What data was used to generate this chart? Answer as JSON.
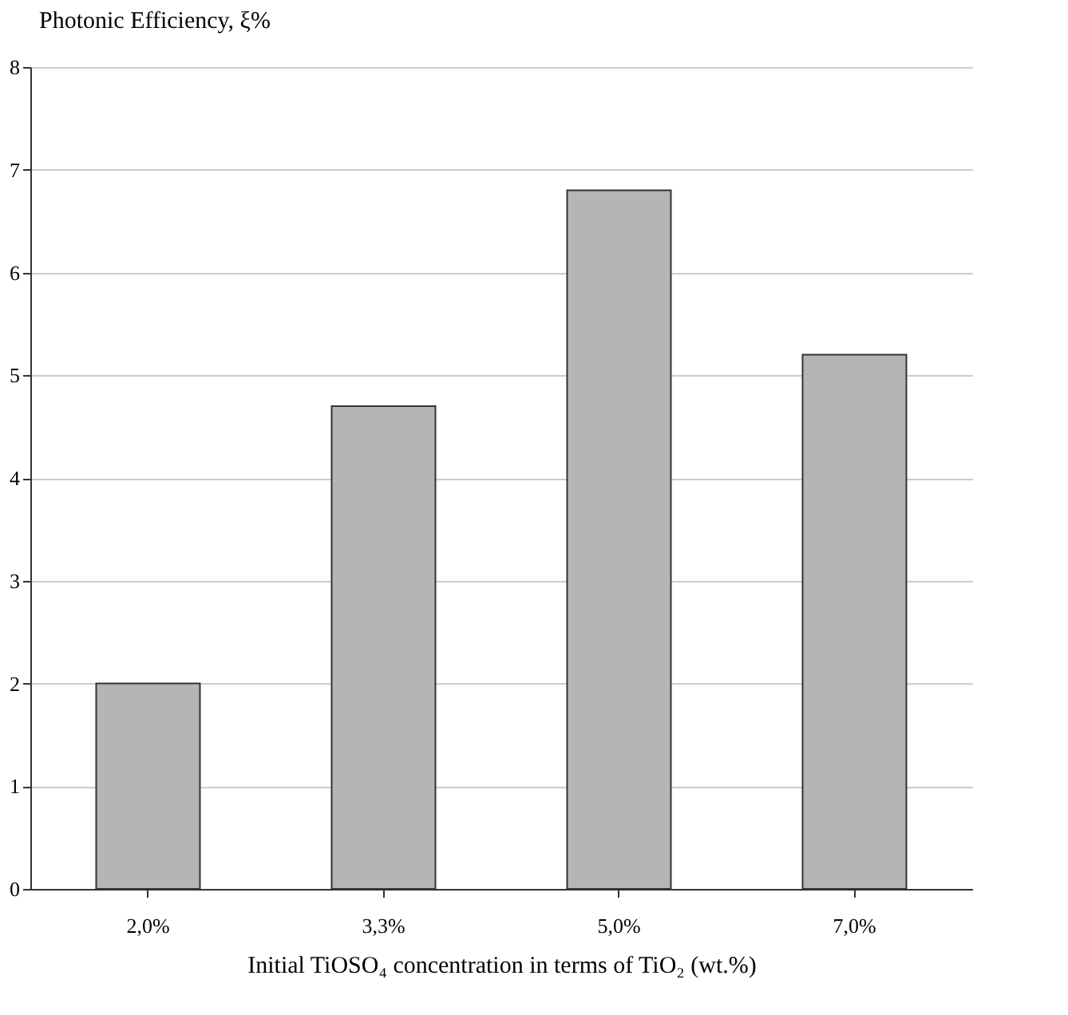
{
  "chart_data": {
    "type": "bar",
    "ylabel": "Photonic Efficiency, ξ%",
    "xlabel": "Initial TiOSO₄ concentration in terms of TiO₂ (wt.%)",
    "categories": [
      "2,0%",
      "3,3%",
      "5,0%",
      "7,0%"
    ],
    "values": [
      2.0,
      4.7,
      6.8,
      5.2
    ],
    "color": "#b5b5b5",
    "ylim": [
      0,
      8
    ],
    "yticks": [
      0,
      1,
      2,
      3,
      4,
      5,
      6,
      7,
      8
    ],
    "grid": "y"
  }
}
